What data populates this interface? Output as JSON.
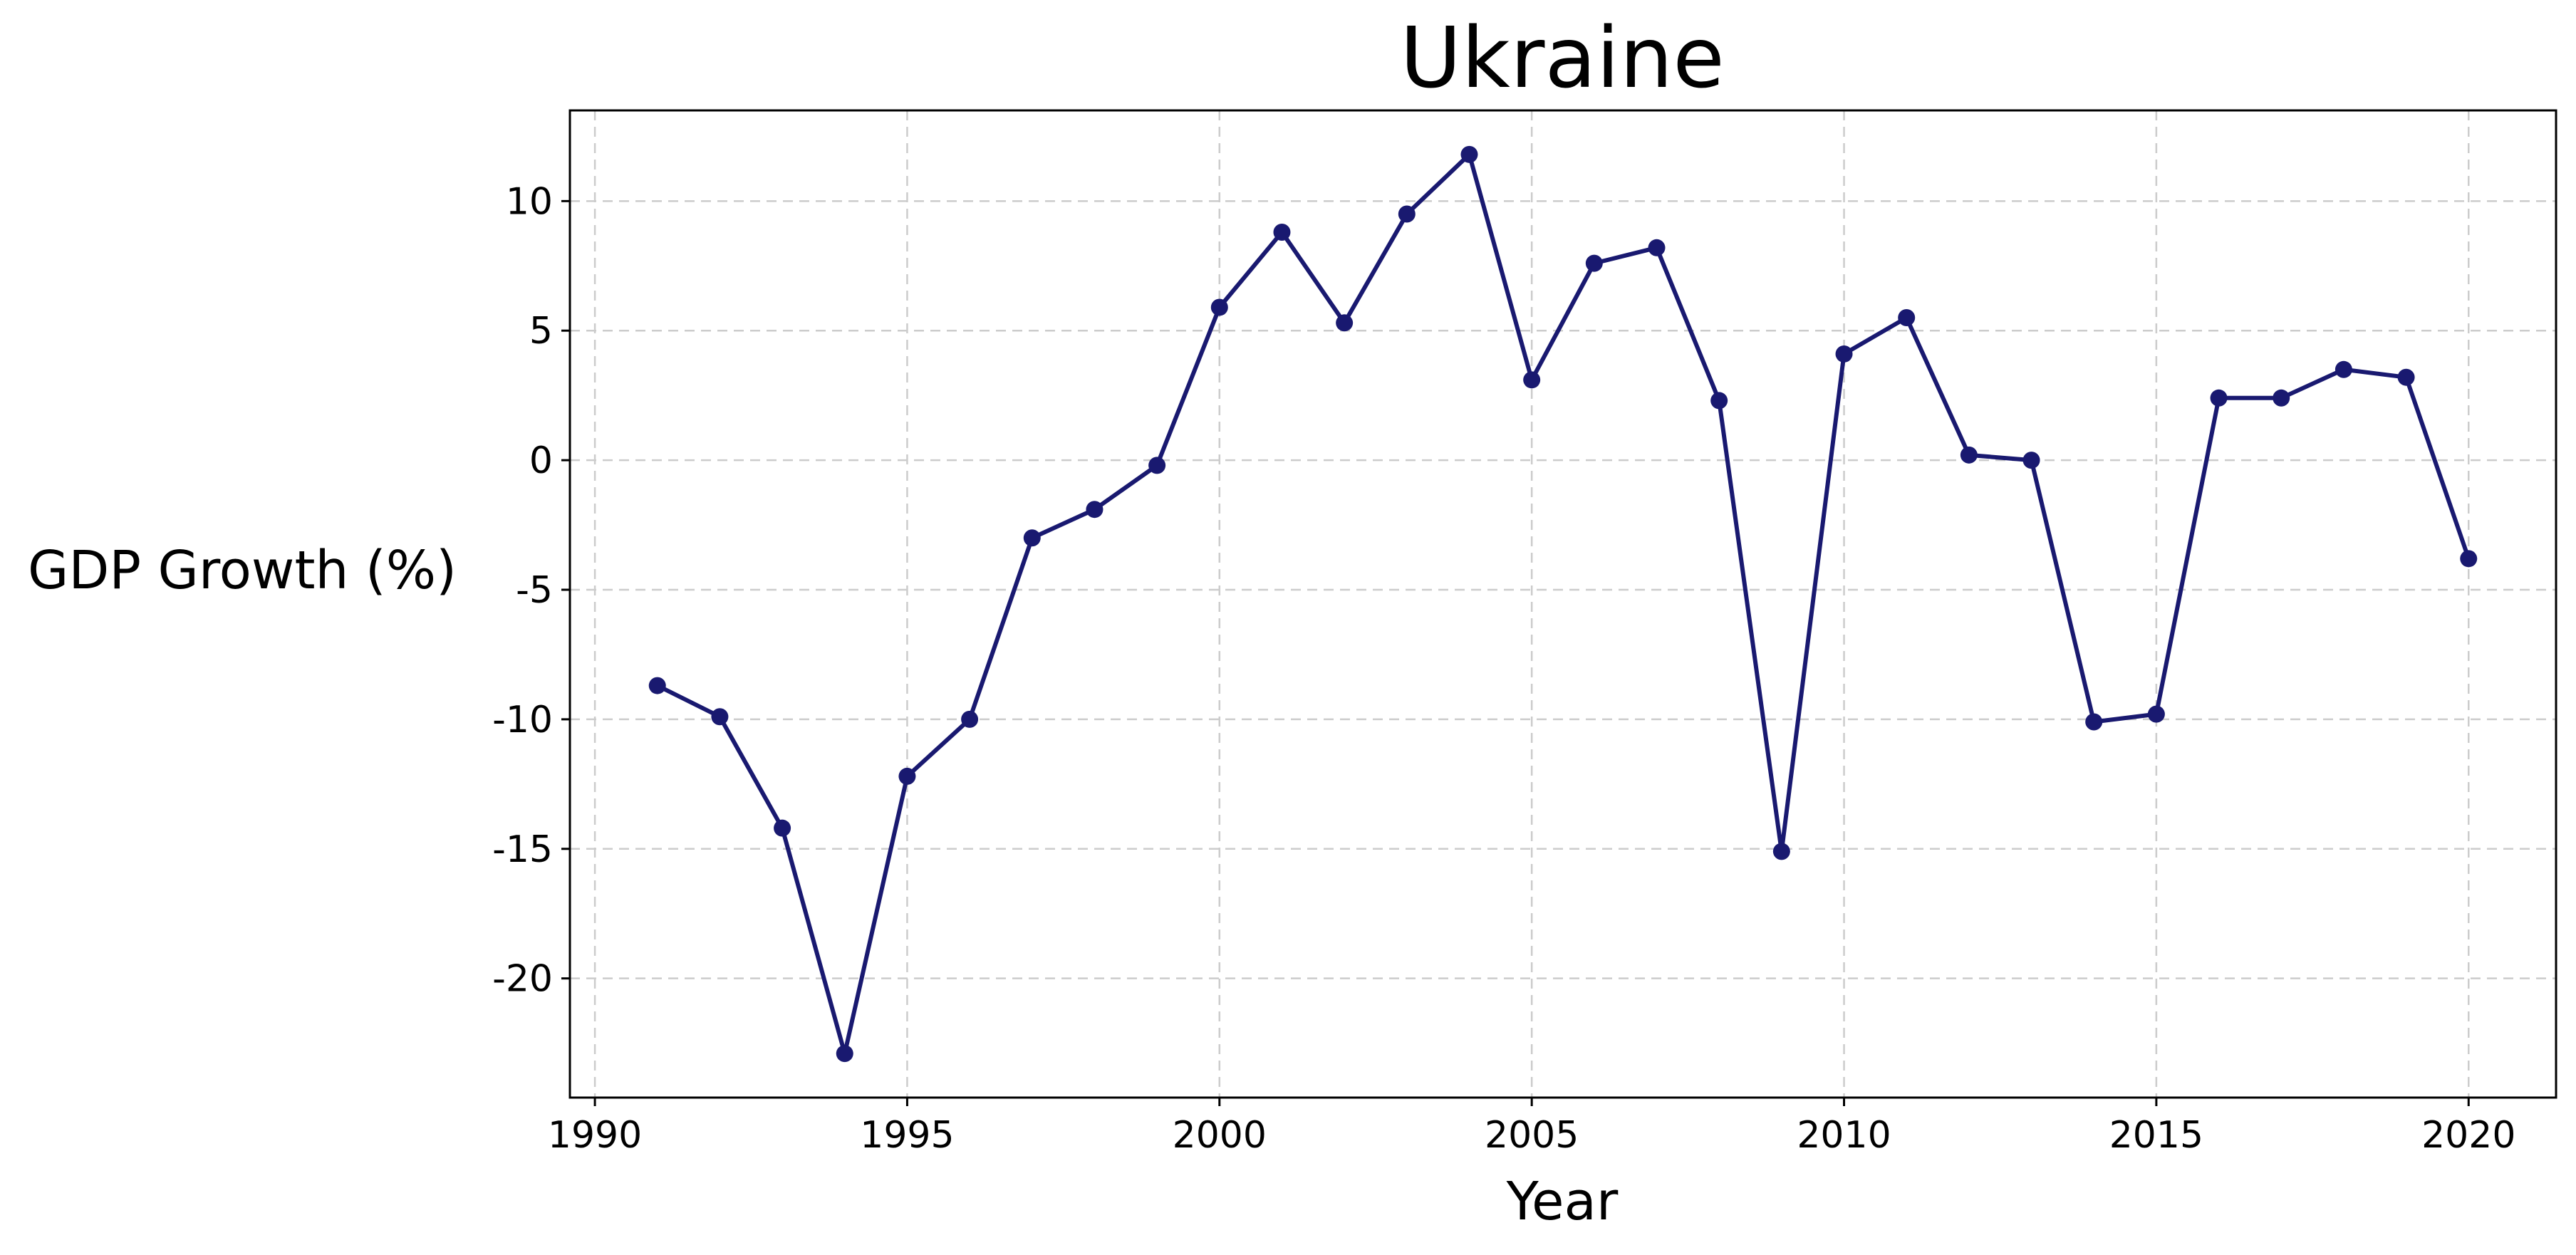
{
  "chart_data": {
    "type": "line",
    "title": "Ukraine",
    "xlabel": "Year",
    "ylabel": "GDP Growth (%)",
    "xlim": [
      1989.6,
      2021.4
    ],
    "ylim": [
      -24.6,
      13.5
    ],
    "xticks": [
      1990,
      1995,
      2000,
      2005,
      2010,
      2015,
      2020
    ],
    "yticks": [
      10,
      5,
      0,
      -5,
      -10,
      -15,
      -20
    ],
    "grid": true,
    "color": "#191970",
    "series": [
      {
        "x": [
          1991,
          1992,
          1993,
          1994,
          1995,
          1996,
          1997,
          1998,
          1999,
          2000,
          2001,
          2002,
          2003,
          2004,
          2005,
          2006,
          2007,
          2008,
          2009,
          2010,
          2011,
          2012,
          2013,
          2014,
          2015,
          2016,
          2017,
          2018,
          2019,
          2020
        ],
        "values": [
          -8.7,
          -9.9,
          -14.2,
          -22.9,
          -12.2,
          -10.0,
          -3.0,
          -1.9,
          -0.2,
          5.9,
          8.8,
          5.3,
          9.5,
          11.8,
          3.1,
          7.6,
          8.2,
          2.3,
          -15.1,
          4.1,
          5.5,
          0.2,
          0.0,
          -10.1,
          -9.8,
          2.4,
          2.4,
          3.5,
          3.2,
          -3.8
        ]
      }
    ]
  }
}
